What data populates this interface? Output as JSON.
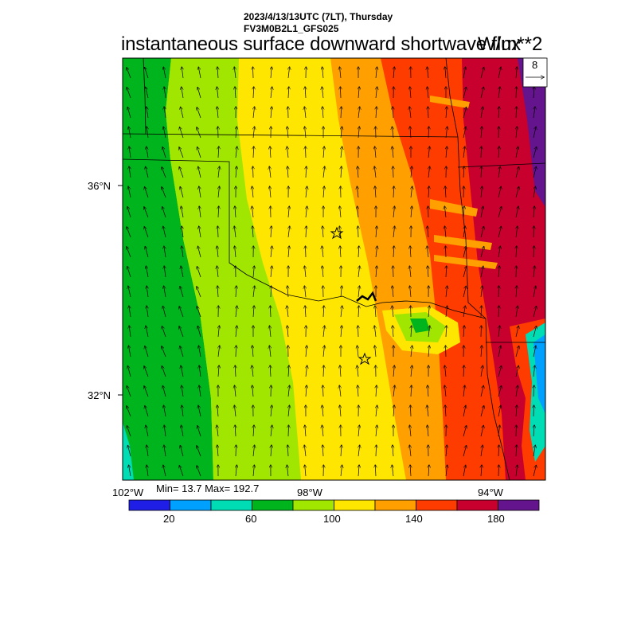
{
  "header": {
    "line1": "2023/4/13/13UTC (7LT), Thursday",
    "line2": "FV3M0B2L1_GFS025"
  },
  "title": "instantaneous surface downward shortwave flux",
  "units": "W/m**2",
  "vector_ref": {
    "value": "8"
  },
  "axes": {
    "lat_labels": [
      "36°N",
      "32°N"
    ],
    "lon_labels": [
      "102°W",
      "98°W",
      "94°W"
    ]
  },
  "stats": {
    "text": "Min= 13.7 Max= 192.7"
  },
  "colorbar": {
    "colors": [
      "#1e1ee6",
      "#00a0ff",
      "#00dcb4",
      "#00b41e",
      "#a0e600",
      "#ffe600",
      "#ffa000",
      "#ff3c00",
      "#c8002d",
      "#64148c"
    ],
    "tick_labels": [
      "20",
      "60",
      "100",
      "140",
      "180"
    ]
  },
  "map": {
    "markers": [
      "star",
      "star"
    ]
  }
}
